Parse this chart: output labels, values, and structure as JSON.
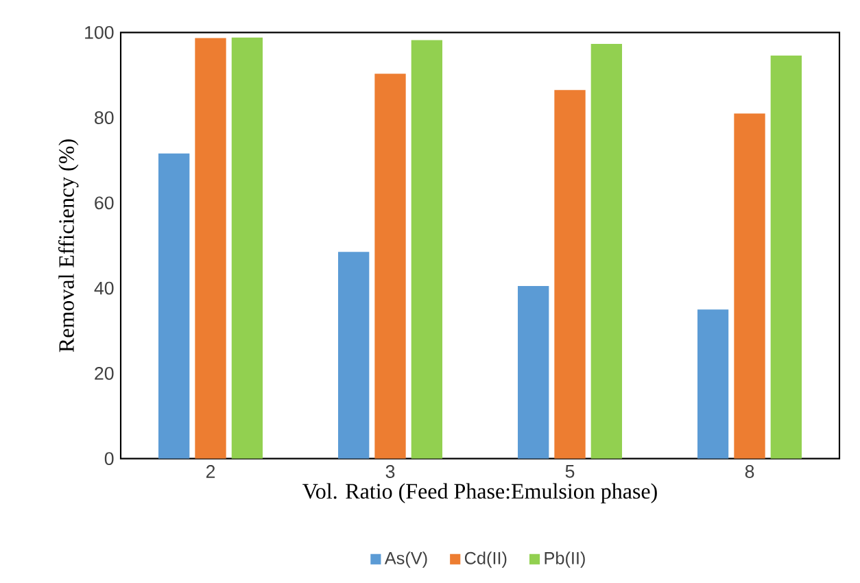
{
  "chart_data": {
    "type": "bar",
    "xlabel": "Vol. Ratio (Feed Phase:Emulsion phase)",
    "ylabel": "Removal Efficiency (%)",
    "categories": [
      "2",
      "3",
      "5",
      "8"
    ],
    "series": [
      {
        "name": "As(V)",
        "color": "#5b9bd5",
        "values": [
          71.6,
          48.5,
          40.5,
          35.0
        ]
      },
      {
        "name": "Cd(II)",
        "color": "#ed7d31",
        "values": [
          98.7,
          90.3,
          86.5,
          81.0
        ]
      },
      {
        "name": "Pb(II)",
        "color": "#92d050",
        "values": [
          98.8,
          98.2,
          97.3,
          94.6
        ]
      }
    ],
    "ylim": [
      0,
      100
    ],
    "yticks": [
      0,
      20,
      40,
      60,
      80,
      100
    ],
    "legend": "bottom"
  }
}
